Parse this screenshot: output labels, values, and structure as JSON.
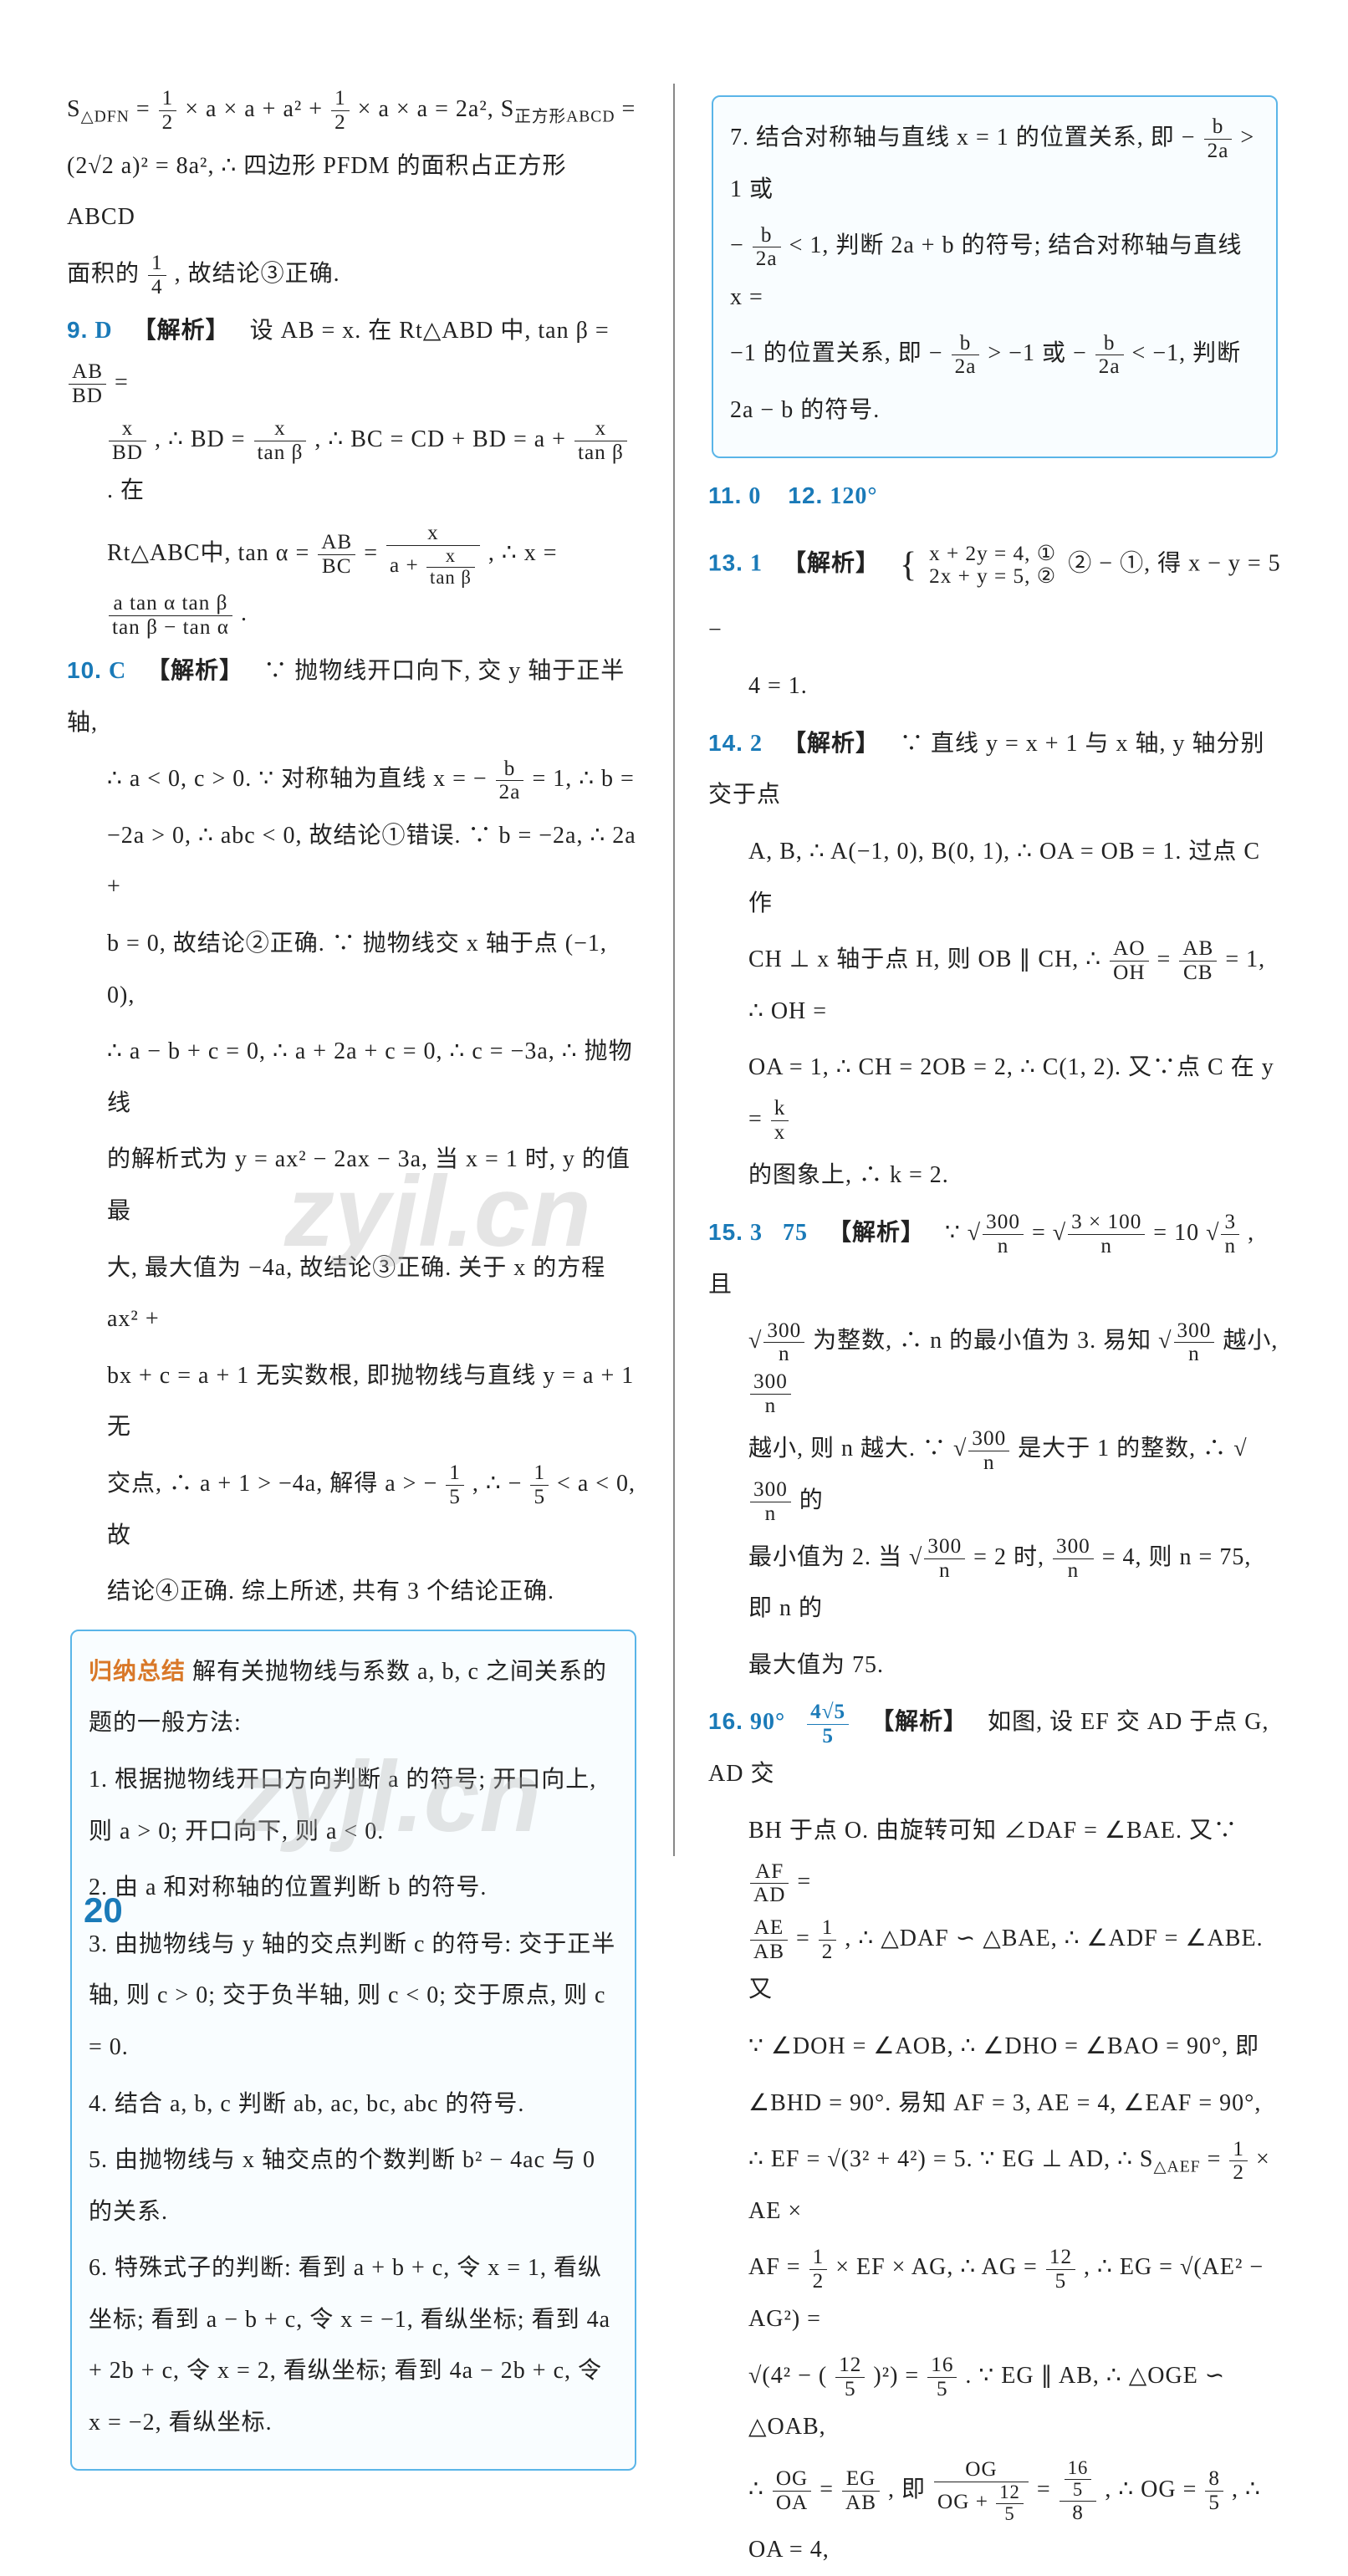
{
  "page_number": "20",
  "watermark": "zyjl.cn",
  "colors": {
    "accent": "#1a7ab8",
    "box_border": "#5ab5e8",
    "box_title": "#d97828",
    "text": "#222222"
  },
  "left_column": {
    "intro": {
      "l1_a": "S",
      "l1_sub": "△DFN",
      "l1_b": " = ",
      "l1_frac1_num": "1",
      "l1_frac1_den": "2",
      "l1_c": " × a × a + a² + ",
      "l1_frac2_num": "1",
      "l1_frac2_den": "2",
      "l1_d": " × a × a = 2a², S",
      "l1_sub2": "正方形ABCD",
      "l1_e": " =",
      "l2_a": "(2√2 a)² = 8a², ∴ 四边形 PFDM 的面积占正方形 ABCD",
      "l3_a": "面积的",
      "l3_frac_num": "1",
      "l3_frac_den": "4",
      "l3_b": ", 故结论③正确."
    },
    "q9": {
      "num": "9.",
      "ans": "D",
      "tag": "【解析】",
      "l1_a": "设 AB = x. 在 Rt△ABD 中, tan β = ",
      "l1_frac_num": "AB",
      "l1_frac_den": "BD",
      "l1_b": " =",
      "l2_frac1_num": "x",
      "l2_frac1_den": "BD",
      "l2_a": ", ∴ BD = ",
      "l2_frac2_num": "x",
      "l2_frac2_den": "tan β",
      "l2_b": ", ∴ BC = CD + BD = a + ",
      "l2_frac3_num": "x",
      "l2_frac3_den": "tan β",
      "l2_c": ". 在",
      "l3_a": "Rt△ABC中, tan α = ",
      "l3_frac1_num": "AB",
      "l3_frac1_den": "BC",
      "l3_b": " = ",
      "l3_frac2_num": "x",
      "l3_frac2_den_a": "a + ",
      "l3_frac2_den_num": "x",
      "l3_frac2_den_den": "tan β",
      "l3_c": ", ∴ x = ",
      "l3_frac3_num": "a tan α tan β",
      "l3_frac3_den": "tan β − tan α",
      "l3_d": "."
    },
    "q10": {
      "num": "10.",
      "ans": "C",
      "tag": "【解析】",
      "l1": "∵ 抛物线开口向下, 交 y 轴于正半轴,",
      "l2_a": "∴ a < 0, c > 0. ∵ 对称轴为直线 x = − ",
      "l2_frac_num": "b",
      "l2_frac_den": "2a",
      "l2_b": " = 1, ∴ b =",
      "l3": "−2a > 0, ∴ abc < 0, 故结论①错误. ∵ b = −2a, ∴ 2a +",
      "l4": "b = 0, 故结论②正确. ∵ 抛物线交 x 轴于点 (−1, 0),",
      "l5": "∴ a − b + c = 0, ∴ a + 2a + c = 0, ∴ c = −3a, ∴ 抛物线",
      "l6": "的解析式为 y = ax² − 2ax − 3a, 当 x = 1 时, y 的值最",
      "l7": "大, 最大值为 −4a, 故结论③正确. 关于 x 的方程 ax² +",
      "l8": "bx + c = a + 1 无实数根, 即抛物线与直线 y = a + 1 无",
      "l9_a": "交点, ∴ a + 1 > −4a, 解得 a > − ",
      "l9_frac1_num": "1",
      "l9_frac1_den": "5",
      "l9_b": ", ∴ − ",
      "l9_frac2_num": "1",
      "l9_frac2_den": "5",
      "l9_c": " < a < 0, 故",
      "l10": "结论④正确. 综上所述, 共有 3 个结论正确."
    },
    "box": {
      "title": "归纳总结",
      "intro": " 解有关抛物线与系数 a, b, c 之间关系的题的一般方法:",
      "p1": "1. 根据抛物线开口方向判断 a 的符号; 开口向上, 则 a > 0; 开口向下, 则 a < 0.",
      "p2": "2. 由 a 和对称轴的位置判断 b 的符号.",
      "p3": "3. 由抛物线与 y 轴的交点判断 c 的符号: 交于正半轴, 则 c > 0; 交于负半轴, 则 c < 0; 交于原点, 则 c = 0.",
      "p4": "4. 结合 a, b, c 判断 ab, ac, bc, abc 的符号.",
      "p5": "5. 由抛物线与 x 轴交点的个数判断 b² − 4ac 与 0 的关系.",
      "p6": "6. 特殊式子的判断: 看到 a + b + c, 令 x = 1, 看纵坐标; 看到 a − b + c, 令 x = −1, 看纵坐标; 看到 4a + 2b + c, 令 x = 2, 看纵坐标; 看到 4a − 2b + c, 令 x = −2, 看纵坐标."
    }
  },
  "right_column": {
    "box7": {
      "l1_a": "7. 结合对称轴与直线 x = 1 的位置关系, 即 − ",
      "l1_frac_num": "b",
      "l1_frac_den": "2a",
      "l1_b": " > 1 或",
      "l2_a": "− ",
      "l2_frac_num": "b",
      "l2_frac_den": "2a",
      "l2_b": " < 1, 判断 2a + b 的符号; 结合对称轴与直线 x =",
      "l3_a": "−1 的位置关系, 即 − ",
      "l3_frac1_num": "b",
      "l3_frac1_den": "2a",
      "l3_b": " > −1 或 − ",
      "l3_frac2_num": "b",
      "l3_frac2_den": "2a",
      "l3_c": " < −1, 判断",
      "l4": "2a − b 的符号."
    },
    "q11": {
      "num": "11.",
      "ans": "0"
    },
    "q12": {
      "num": "12.",
      "ans": "120°"
    },
    "q13": {
      "num": "13.",
      "ans": "1",
      "tag": "【解析】",
      "l1_a": "{",
      "l1_b": "x + 2y = 4, ①",
      "l1_c": "2x + y = 5, ②",
      "l1_d": " ② − ①, 得 x − y = 5 −",
      "l2": "4 = 1."
    },
    "q14": {
      "num": "14.",
      "ans": "2",
      "tag": "【解析】",
      "l1": "∵ 直线 y = x + 1 与 x 轴, y 轴分别交于点",
      "l2": "A, B, ∴ A(−1, 0), B(0, 1), ∴ OA = OB = 1. 过点 C 作",
      "l3_a": "CH ⊥ x 轴于点 H, 则 OB ∥ CH, ∴ ",
      "l3_frac1_num": "AO",
      "l3_frac1_den": "OH",
      "l3_b": " = ",
      "l3_frac2_num": "AB",
      "l3_frac2_den": "CB",
      "l3_c": " = 1, ∴ OH =",
      "l4_a": "OA = 1, ∴ CH = 2OB = 2, ∴ C(1, 2). 又∵点 C 在 y = ",
      "l4_frac_num": "k",
      "l4_frac_den": "x",
      "l5": "的图象上, ∴ k = 2."
    },
    "q15": {
      "num": "15.",
      "ans1": "3",
      "ans2": "75",
      "tag": "【解析】",
      "l1_a": "∵ ",
      "l1_sq1_num": "300",
      "l1_sq1_den": "n",
      "l1_b": " = ",
      "l1_sq2_num": "3 × 100",
      "l1_sq2_den": "n",
      "l1_c": " = 10",
      "l1_sq3_num": "3",
      "l1_sq3_den": "n",
      "l1_d": ", 且",
      "l2_sq1_num": "300",
      "l2_sq1_den": "n",
      "l2_a": "为整数, ∴ n 的最小值为 3. 易知",
      "l2_sq2_num": "300",
      "l2_sq2_den": "n",
      "l2_b": "越小, ",
      "l2_frac_num": "300",
      "l2_frac_den": "n",
      "l3_a": "越小, 则 n 越大. ∵ ",
      "l3_sq_num": "300",
      "l3_sq_den": "n",
      "l3_b": "是大于 1 的整数, ∴ ",
      "l3_sq2_num": "300",
      "l3_sq2_den": "n",
      "l3_c": "的",
      "l4_a": "最小值为 2. 当",
      "l4_sq_num": "300",
      "l4_sq_den": "n",
      "l4_b": " = 2 时, ",
      "l4_frac_num": "300",
      "l4_frac_den": "n",
      "l4_c": " = 4, 则 n = 75, 即 n 的",
      "l5": "最大值为 75."
    },
    "q16": {
      "num": "16.",
      "ans1": "90°",
      "ans2_num": "4√5",
      "ans2_den": "5",
      "tag": "【解析】",
      "l1": "如图, 设 EF 交 AD 于点 G, AD 交",
      "l2_a": "BH 于点 O. 由旋转可知 ∠DAF = ∠BAE. 又∵",
      "l2_frac_num": "AF",
      "l2_frac_den": "AD",
      "l2_b": " =",
      "l3_frac1_num": "AE",
      "l3_frac1_den": "AB",
      "l3_a": " = ",
      "l3_frac2_num": "1",
      "l3_frac2_den": "2",
      "l3_b": ", ∴ △DAF ∽ △BAE, ∴ ∠ADF = ∠ABE. 又",
      "l4": "∵ ∠DOH = ∠AOB, ∴ ∠DHO = ∠BAO = 90°, 即",
      "l5": "∠BHD = 90°. 易知 AF = 3, AE = 4, ∠EAF = 90°,",
      "l6_a": "∴ EF = √(3² + 4²) = 5. ∵ EG ⊥ AD, ∴ S",
      "l6_sub": "△AEF",
      "l6_b": " = ",
      "l6_frac_num": "1",
      "l6_frac_den": "2",
      "l6_c": " × AE ×",
      "l7_a": "AF = ",
      "l7_frac1_num": "1",
      "l7_frac1_den": "2",
      "l7_b": " × EF × AG, ∴ AG = ",
      "l7_frac2_num": "12",
      "l7_frac2_den": "5",
      "l7_c": ", ∴ EG = √(AE² − AG²) =",
      "l8_a": "√(4² − (",
      "l8_frac1_num": "12",
      "l8_frac1_den": "5",
      "l8_b": ")²) = ",
      "l8_frac2_num": "16",
      "l8_frac2_den": "5",
      "l8_c": ". ∵ EG ∥ AB, ∴ △OGE ∽ △OAB,",
      "l9_a": "∴ ",
      "l9_frac1_num": "OG",
      "l9_frac1_den": "OA",
      "l9_b": " = ",
      "l9_frac2_num": "EG",
      "l9_frac2_den": "AB",
      "l9_c": ", 即 ",
      "l9_frac3_num": "OG",
      "l9_frac3_den_a": "OG + ",
      "l9_frac3_den_num": "12",
      "l9_frac3_den_den": "5",
      "l9_d": " = ",
      "l9_frac4_num_num": "16",
      "l9_frac4_num_den": "5",
      "l9_frac4_den": "8",
      "l9_e": ", ∴ OG = ",
      "l9_frac5_num": "8",
      "l9_frac5_den": "5",
      "l9_f": ", ∴ OA = 4,"
    }
  }
}
